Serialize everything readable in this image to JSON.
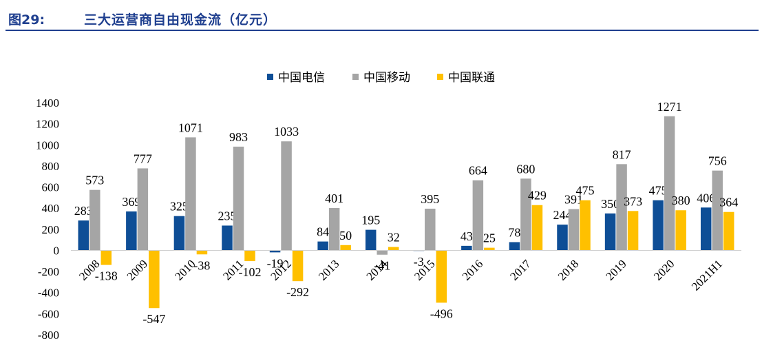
{
  "header": {
    "figure_number": "图29:",
    "title": "三大运营商自由现金流（亿元）"
  },
  "chart_data": {
    "type": "bar",
    "categories": [
      "2008",
      "2009",
      "2010",
      "2011",
      "2012",
      "2013",
      "2014",
      "2015",
      "2016",
      "2017",
      "2018",
      "2019",
      "2020",
      "2021H1"
    ],
    "series": [
      {
        "name": "中国电信",
        "color": "#0e4e96",
        "values": [
          283,
          369,
          325,
          235,
          -19,
          84,
          195,
          -3,
          43,
          78,
          244,
          350,
          475,
          406
        ]
      },
      {
        "name": "中国移动",
        "color": "#a5a5a5",
        "values": [
          573,
          777,
          1071,
          983,
          1033,
          401,
          -41,
          395,
          664,
          680,
          391,
          817,
          1271,
          756
        ]
      },
      {
        "name": "中国联通",
        "color": "#ffc000",
        "values": [
          -138,
          -547,
          -38,
          -102,
          -292,
          50,
          32,
          -496,
          25,
          429,
          475,
          373,
          380,
          364
        ]
      }
    ],
    "ylim": [
      -800,
      1400
    ],
    "yticks": [
      -800,
      -600,
      -400,
      -200,
      0,
      200,
      400,
      600,
      800,
      1000,
      1200,
      1400
    ],
    "legend_position": "top-center",
    "grid": false
  }
}
